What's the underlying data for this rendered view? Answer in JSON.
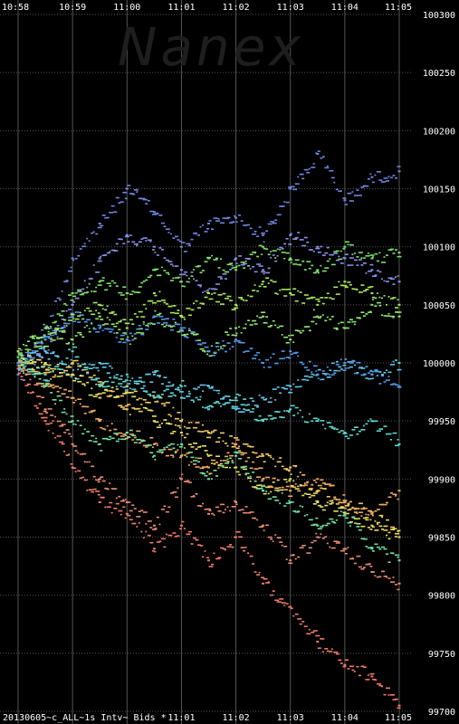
{
  "watermark": "Nanex",
  "footer_label": "20130605~c_ALL~1s Intv~ Bids *",
  "chart_data": {
    "type": "scatter",
    "title": "",
    "xlabel": "",
    "ylabel": "",
    "x_ticks": [
      "10:58",
      "10:59",
      "11:00",
      "11:01",
      "11:02",
      "11:03",
      "11:04",
      "11:05"
    ],
    "x_ticks_bottom": [
      "11:01",
      "11:02",
      "11:03",
      "11:04",
      "11:05"
    ],
    "xlim": [
      "10:58",
      "11:05"
    ],
    "y_ticks": [
      100300,
      100250,
      100200,
      100150,
      100100,
      100050,
      100000,
      99950,
      99900,
      99850,
      99800,
      99750,
      99700
    ],
    "ylim": [
      99700,
      100300
    ],
    "grid": true,
    "legend": "none",
    "series": [
      {
        "color": "#6f86e0",
        "values": [
          [
            "10:58",
            99998
          ],
          [
            "10:58:30",
            100030
          ],
          [
            "10:59",
            100090
          ],
          [
            "10:59:30",
            100120
          ],
          [
            "11:00",
            100150
          ],
          [
            "11:00:30",
            100130
          ],
          [
            "11:01",
            100100
          ],
          [
            "11:01:30",
            100120
          ],
          [
            "11:02",
            100125
          ],
          [
            "11:02:30",
            100110
          ],
          [
            "11:03",
            100150
          ],
          [
            "11:03:30",
            100180
          ],
          [
            "11:04",
            100140
          ],
          [
            "11:04:30",
            100160
          ],
          [
            "11:05",
            100165
          ]
        ]
      },
      {
        "color": "#8a8fe8",
        "values": [
          [
            "10:58",
            99990
          ],
          [
            "10:58:30",
            100010
          ],
          [
            "10:59",
            100050
          ],
          [
            "10:59:30",
            100090
          ],
          [
            "11:00",
            100110
          ],
          [
            "11:00:30",
            100100
          ],
          [
            "11:01",
            100080
          ],
          [
            "11:01:30",
            100060
          ],
          [
            "11:02",
            100090
          ],
          [
            "11:02:30",
            100080
          ],
          [
            "11:03",
            100110
          ],
          [
            "11:03:30",
            100100
          ],
          [
            "11:04",
            100090
          ],
          [
            "11:04:30",
            100080
          ],
          [
            "11:05",
            100070
          ]
        ]
      },
      {
        "color": "#f07a68",
        "values": [
          [
            "10:58",
            99995
          ],
          [
            "10:58:30",
            99950
          ],
          [
            "10:59",
            99910
          ],
          [
            "10:59:30",
            99880
          ],
          [
            "11:00",
            99870
          ],
          [
            "11:00:30",
            99840
          ],
          [
            "11:01",
            99860
          ],
          [
            "11:01:30",
            99830
          ],
          [
            "11:02",
            99850
          ],
          [
            "11:02:30",
            99810
          ],
          [
            "11:03",
            99790
          ],
          [
            "11:03:30",
            99760
          ],
          [
            "11:04",
            99740
          ],
          [
            "11:04:30",
            99730
          ],
          [
            "11:05",
            99705
          ]
        ]
      },
      {
        "color": "#e88a72",
        "values": [
          [
            "10:58",
            100000
          ],
          [
            "10:58:30",
            99960
          ],
          [
            "10:59",
            99930
          ],
          [
            "10:59:30",
            99900
          ],
          [
            "11:00",
            99880
          ],
          [
            "11:00:30",
            99860
          ],
          [
            "11:01",
            99900
          ],
          [
            "11:01:30",
            99870
          ],
          [
            "11:02",
            99880
          ],
          [
            "11:02:30",
            99860
          ],
          [
            "11:03",
            99830
          ],
          [
            "11:03:30",
            99850
          ],
          [
            "11:04",
            99840
          ],
          [
            "11:04:30",
            99820
          ],
          [
            "11:05",
            99810
          ]
        ]
      },
      {
        "color": "#7ee06a",
        "values": [
          [
            "10:58",
            100005
          ],
          [
            "10:58:30",
            100030
          ],
          [
            "10:59",
            100060
          ],
          [
            "10:59:30",
            100070
          ],
          [
            "11:00",
            100060
          ],
          [
            "11:00:30",
            100080
          ],
          [
            "11:01",
            100070
          ],
          [
            "11:01:30",
            100090
          ],
          [
            "11:02",
            100080
          ],
          [
            "11:02:30",
            100100
          ],
          [
            "11:03",
            100090
          ],
          [
            "11:03:30",
            100080
          ],
          [
            "11:04",
            100100
          ],
          [
            "11:04:30",
            100090
          ],
          [
            "11:05",
            100095
          ]
        ]
      },
      {
        "color": "#a6e85a",
        "values": [
          [
            "10:58",
            100000
          ],
          [
            "10:58:30",
            100020
          ],
          [
            "10:59",
            100040
          ],
          [
            "10:59:30",
            100050
          ],
          [
            "11:00",
            100030
          ],
          [
            "11:00:30",
            100060
          ],
          [
            "11:01",
            100040
          ],
          [
            "11:01:30",
            100060
          ],
          [
            "11:02",
            100050
          ],
          [
            "11:02:30",
            100070
          ],
          [
            "11:03",
            100060
          ],
          [
            "11:03:30",
            100050
          ],
          [
            "11:04",
            100070
          ],
          [
            "11:04:30",
            100060
          ],
          [
            "11:05",
            100050
          ]
        ]
      },
      {
        "color": "#f0c860",
        "values": [
          [
            "10:58",
            100010
          ],
          [
            "10:58:30",
            99990
          ],
          [
            "10:59",
            100000
          ],
          [
            "10:59:30",
            99980
          ],
          [
            "11:00",
            99960
          ],
          [
            "11:00:30",
            99970
          ],
          [
            "11:01",
            99950
          ],
          [
            "11:01:30",
            99940
          ],
          [
            "11:02",
            99930
          ],
          [
            "11:02:30",
            99920
          ],
          [
            "11:03",
            99910
          ],
          [
            "11:03:30",
            99890
          ],
          [
            "11:04",
            99880
          ],
          [
            "11:04:30",
            99870
          ],
          [
            "11:05",
            99850
          ]
        ]
      },
      {
        "color": "#f0a860",
        "values": [
          [
            "10:58",
            100000
          ],
          [
            "10:58:30",
            99980
          ],
          [
            "10:59",
            99970
          ],
          [
            "10:59:30",
            99950
          ],
          [
            "11:00",
            99940
          ],
          [
            "11:00:30",
            99930
          ],
          [
            "11:01",
            99920
          ],
          [
            "11:01:30",
            99910
          ],
          [
            "11:02",
            99930
          ],
          [
            "11:02:30",
            99900
          ],
          [
            "11:03",
            99890
          ],
          [
            "11:03:30",
            99900
          ],
          [
            "11:04",
            99880
          ],
          [
            "11:04:30",
            99870
          ],
          [
            "11:05",
            99890
          ]
        ]
      },
      {
        "color": "#5ad8d0",
        "values": [
          [
            "10:58",
            100000
          ],
          [
            "10:58:30",
            99990
          ],
          [
            "10:59",
            100010
          ],
          [
            "10:59:30",
            99980
          ],
          [
            "11:00",
            99990
          ],
          [
            "11:00:30",
            99970
          ],
          [
            "11:01",
            99980
          ],
          [
            "11:01:30",
            99960
          ],
          [
            "11:02",
            99970
          ],
          [
            "11:02:30",
            99950
          ],
          [
            "11:03",
            99960
          ],
          [
            "11:03:30",
            99950
          ],
          [
            "11:04",
            99940
          ],
          [
            "11:04:30",
            99950
          ],
          [
            "11:05",
            99930
          ]
        ]
      },
      {
        "color": "#60c8e8",
        "values": [
          [
            "10:58",
            100000
          ],
          [
            "10:58:30",
            100010
          ],
          [
            "10:59",
            99990
          ],
          [
            "10:59:30",
            100000
          ],
          [
            "11:00",
            99980
          ],
          [
            "11:00:30",
            99990
          ],
          [
            "11:01",
            99970
          ],
          [
            "11:01:30",
            99980
          ],
          [
            "11:02",
            99960
          ],
          [
            "11:02:30",
            99970
          ],
          [
            "11:03",
            99980
          ],
          [
            "11:03:30",
            99990
          ],
          [
            "11:04",
            100000
          ],
          [
            "11:04:30",
            99990
          ],
          [
            "11:05",
            100000
          ]
        ]
      },
      {
        "color": "#e8e060",
        "values": [
          [
            "10:58",
            100000
          ],
          [
            "10:58:30",
            100000
          ],
          [
            "10:59",
            99990
          ],
          [
            "10:59:30",
            99970
          ],
          [
            "11:00",
            99980
          ],
          [
            "11:00:30",
            99950
          ],
          [
            "11:01",
            99940
          ],
          [
            "11:01:30",
            99920
          ],
          [
            "11:02",
            99910
          ],
          [
            "11:02:30",
            99890
          ],
          [
            "11:03",
            99900
          ],
          [
            "11:03:30",
            99880
          ],
          [
            "11:04",
            99870
          ],
          [
            "11:04:30",
            99860
          ],
          [
            "11:05",
            99850
          ]
        ]
      },
      {
        "color": "#70e0a0",
        "values": [
          [
            "10:58",
            100000
          ],
          [
            "10:58:30",
            99980
          ],
          [
            "10:59",
            99950
          ],
          [
            "10:59:30",
            99930
          ],
          [
            "11:00",
            99940
          ],
          [
            "11:00:30",
            99920
          ],
          [
            "11:01",
            99930
          ],
          [
            "11:01:30",
            99900
          ],
          [
            "11:02",
            99920
          ],
          [
            "11:02:30",
            99890
          ],
          [
            "11:03",
            99880
          ],
          [
            "11:03:30",
            99860
          ],
          [
            "11:04",
            99870
          ],
          [
            "11:04:30",
            99840
          ],
          [
            "11:05",
            99830
          ]
        ]
      },
      {
        "color": "#90e870",
        "values": [
          [
            "10:58",
            100010
          ],
          [
            "10:58:30",
            100030
          ],
          [
            "10:59",
            100020
          ],
          [
            "10:59:30",
            100040
          ],
          [
            "11:00",
            100020
          ],
          [
            "11:00:30",
            100040
          ],
          [
            "11:01",
            100030
          ],
          [
            "11:01:30",
            100010
          ],
          [
            "11:02",
            100030
          ],
          [
            "11:02:30",
            100040
          ],
          [
            "11:03",
            100020
          ],
          [
            "11:03:30",
            100040
          ],
          [
            "11:04",
            100030
          ],
          [
            "11:04:30",
            100050
          ],
          [
            "11:05",
            100040
          ]
        ]
      },
      {
        "color": "#5098e8",
        "values": [
          [
            "10:58",
            100000
          ],
          [
            "10:58:30",
            100020
          ],
          [
            "10:59",
            100040
          ],
          [
            "10:59:30",
            100030
          ],
          [
            "11:00",
            100020
          ],
          [
            "11:00:30",
            100040
          ],
          [
            "11:01",
            100030
          ],
          [
            "11:01:30",
            100010
          ],
          [
            "11:02",
            100020
          ],
          [
            "11:02:30",
            100000
          ],
          [
            "11:03",
            100010
          ],
          [
            "11:03:30",
            99990
          ],
          [
            "11:04",
            100000
          ],
          [
            "11:04:30",
            99990
          ],
          [
            "11:05",
            99980
          ]
        ]
      }
    ]
  }
}
